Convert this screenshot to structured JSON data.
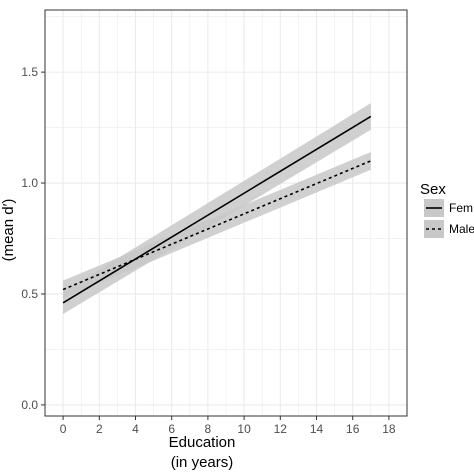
{
  "chart_data": {
    "type": "line",
    "title": "",
    "xlabel_line1": "Education",
    "xlabel_line2": "(in years)",
    "ylabel": "(mean d′)",
    "xlim": [
      -1,
      19
    ],
    "ylim": [
      -0.05,
      1.78
    ],
    "x_ticks": [
      0,
      2,
      4,
      6,
      8,
      10,
      12,
      14,
      16,
      18
    ],
    "y_ticks": [
      0.0,
      0.5,
      1.0,
      1.5
    ],
    "y_tick_labels": [
      "0.0",
      "0.5",
      "1.0",
      "1.5"
    ],
    "grid": true,
    "legend": {
      "title": "Sex",
      "placement": "right",
      "entries": [
        "Fem",
        "Male"
      ]
    },
    "series": [
      {
        "name": "Female",
        "line_style": "solid",
        "x": [
          0,
          17
        ],
        "y": [
          0.46,
          1.3
        ],
        "ci_lower": [
          0.41,
          1.24
        ],
        "ci_upper": [
          0.51,
          1.36
        ]
      },
      {
        "name": "Male",
        "line_style": "dashed",
        "x": [
          0,
          17
        ],
        "y": [
          0.52,
          1.1
        ],
        "ci_lower": [
          0.48,
          1.06
        ],
        "ci_upper": [
          0.56,
          1.14
        ]
      }
    ],
    "colors": {
      "line": "#000000",
      "band": "#c8c8c8",
      "grid": "#ebebeb",
      "panel_border": "#333333"
    }
  }
}
